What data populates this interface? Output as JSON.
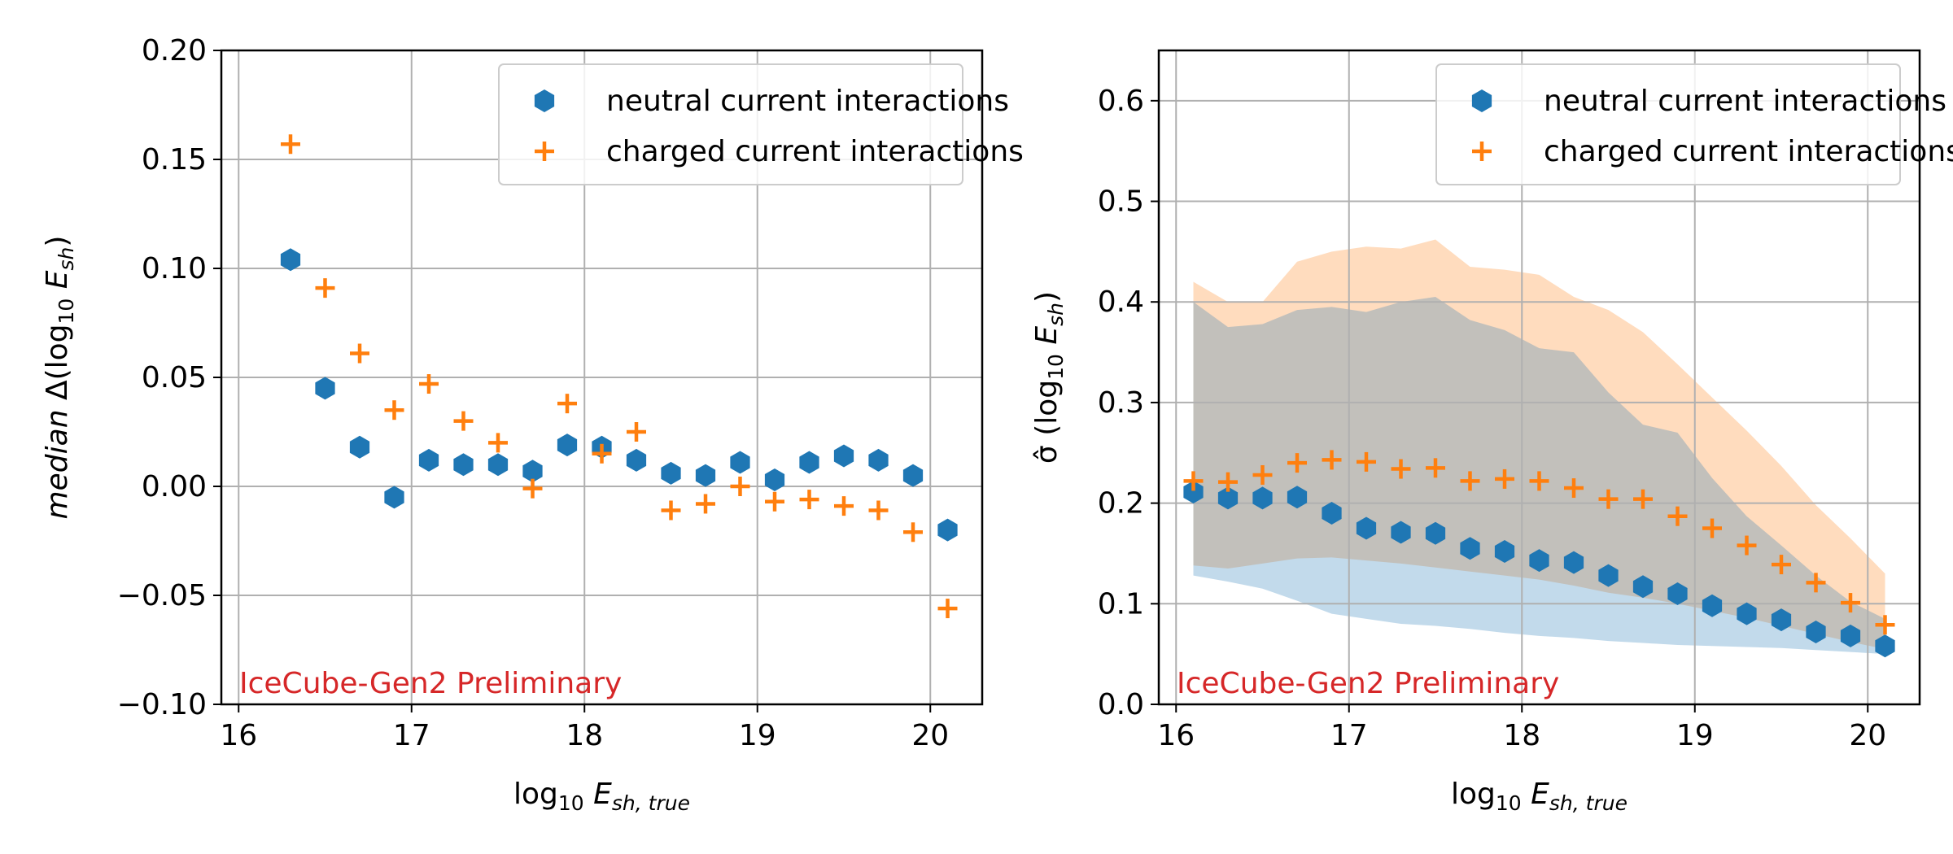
{
  "chart_data": [
    {
      "type": "scatter",
      "title": "",
      "xlabel": {
        "base": "log",
        "sub": "10",
        "var": "E",
        "varsub": "sh, true"
      },
      "ylabel": {
        "prefix": "median Δ(log",
        "sub": "10",
        "var": "E",
        "varsub": "sh",
        "suffix": ")"
      },
      "xlim": [
        15.9,
        20.3
      ],
      "ylim": [
        -0.1,
        0.2
      ],
      "xticks": [
        16,
        17,
        18,
        19,
        20
      ],
      "xtick_labels": [
        "16",
        "17",
        "18",
        "19",
        "20"
      ],
      "yticks": [
        -0.1,
        -0.05,
        0.0,
        0.05,
        0.1,
        0.15,
        0.2
      ],
      "ytick_labels": [
        "−0.10",
        "−0.05",
        "0.00",
        "0.05",
        "0.10",
        "0.15",
        "0.20"
      ],
      "grid": true,
      "legend_position": "top-right",
      "annotation": "IceCube-Gen2 Preliminary",
      "series": [
        {
          "name": "neutral current interactions",
          "marker": "hexagon",
          "color": "#1f77b4",
          "x": [
            16.3,
            16.5,
            16.7,
            16.9,
            17.1,
            17.3,
            17.5,
            17.7,
            17.9,
            18.1,
            18.3,
            18.5,
            18.7,
            18.9,
            19.1,
            19.3,
            19.5,
            19.7,
            19.9,
            20.1
          ],
          "y": [
            0.104,
            0.045,
            0.018,
            -0.005,
            0.012,
            0.01,
            0.01,
            0.007,
            0.019,
            0.018,
            0.012,
            0.006,
            0.005,
            0.011,
            0.003,
            0.011,
            0.014,
            0.012,
            0.005,
            -0.02
          ]
        },
        {
          "name": "charged current interactions",
          "marker": "plus",
          "color": "#ff7f0e",
          "x": [
            16.3,
            16.5,
            16.7,
            16.9,
            17.1,
            17.3,
            17.5,
            17.7,
            17.9,
            18.1,
            18.3,
            18.5,
            18.7,
            18.9,
            19.1,
            19.3,
            19.5,
            19.7,
            19.9,
            20.1
          ],
          "y": [
            0.157,
            0.091,
            0.061,
            0.035,
            0.047,
            0.03,
            0.02,
            -0.001,
            0.038,
            0.015,
            0.025,
            -0.011,
            -0.008,
            0.0,
            -0.007,
            -0.006,
            -0.009,
            -0.011,
            -0.021,
            -0.056
          ]
        }
      ]
    },
    {
      "type": "scatter",
      "title": "",
      "xlabel": {
        "base": "log",
        "sub": "10",
        "var": "E",
        "varsub": "sh, true"
      },
      "ylabel": {
        "prefix": "σ̂ (log",
        "sub": "10",
        "var": "E",
        "varsub": "sh",
        "suffix": ")"
      },
      "xlim": [
        15.9,
        20.3
      ],
      "ylim": [
        0.0,
        0.65
      ],
      "xticks": [
        16,
        17,
        18,
        19,
        20
      ],
      "xtick_labels": [
        "16",
        "17",
        "18",
        "19",
        "20"
      ],
      "yticks": [
        0.0,
        0.1,
        0.2,
        0.3,
        0.4,
        0.5,
        0.6
      ],
      "ytick_labels": [
        "0.0",
        "0.1",
        "0.2",
        "0.3",
        "0.4",
        "0.5",
        "0.6"
      ],
      "grid": true,
      "legend_position": "top-right",
      "annotation": "IceCube-Gen2 Preliminary",
      "bands": [
        {
          "series": "charged current interactions",
          "color": "#ff7f0e",
          "x": [
            16.1,
            16.3,
            16.5,
            16.7,
            16.9,
            17.1,
            17.3,
            17.5,
            17.7,
            17.9,
            18.1,
            18.3,
            18.5,
            18.7,
            18.9,
            19.1,
            19.3,
            19.5,
            19.7,
            19.9,
            20.1
          ],
          "upper": [
            0.42,
            0.4,
            0.4,
            0.44,
            0.45,
            0.455,
            0.453,
            0.462,
            0.435,
            0.432,
            0.427,
            0.405,
            0.392,
            0.37,
            0.338,
            0.305,
            0.272,
            0.237,
            0.198,
            0.165,
            0.13
          ],
          "lower": [
            0.138,
            0.135,
            0.14,
            0.145,
            0.146,
            0.143,
            0.14,
            0.136,
            0.132,
            0.128,
            0.124,
            0.118,
            0.111,
            0.106,
            0.1,
            0.093,
            0.086,
            0.078,
            0.07,
            0.062,
            0.055
          ]
        },
        {
          "series": "neutral current interactions",
          "color": "#1f77b4",
          "x": [
            16.1,
            16.3,
            16.5,
            16.7,
            16.9,
            17.1,
            17.3,
            17.5,
            17.7,
            17.9,
            18.1,
            18.3,
            18.5,
            18.7,
            18.9,
            19.1,
            19.3,
            19.5,
            19.7,
            19.9,
            20.1
          ],
          "upper": [
            0.4,
            0.375,
            0.378,
            0.392,
            0.395,
            0.39,
            0.4,
            0.405,
            0.382,
            0.372,
            0.354,
            0.35,
            0.31,
            0.278,
            0.27,
            0.225,
            0.187,
            0.158,
            0.128,
            0.102,
            0.085
          ],
          "lower": [
            0.128,
            0.122,
            0.115,
            0.103,
            0.09,
            0.085,
            0.08,
            0.078,
            0.075,
            0.071,
            0.068,
            0.066,
            0.063,
            0.061,
            0.059,
            0.058,
            0.057,
            0.056,
            0.054,
            0.052,
            0.05
          ]
        }
      ],
      "series": [
        {
          "name": "neutral current interactions",
          "marker": "hexagon",
          "color": "#1f77b4",
          "x": [
            16.1,
            16.3,
            16.5,
            16.7,
            16.9,
            17.1,
            17.3,
            17.5,
            17.7,
            17.9,
            18.1,
            18.3,
            18.5,
            18.7,
            18.9,
            19.1,
            19.3,
            19.5,
            19.7,
            19.9,
            20.1
          ],
          "y": [
            0.211,
            0.205,
            0.205,
            0.206,
            0.19,
            0.175,
            0.171,
            0.17,
            0.155,
            0.152,
            0.143,
            0.141,
            0.128,
            0.117,
            0.11,
            0.098,
            0.09,
            0.084,
            0.072,
            0.068,
            0.058
          ]
        },
        {
          "name": "charged current interactions",
          "marker": "plus",
          "color": "#ff7f0e",
          "x": [
            16.1,
            16.3,
            16.5,
            16.7,
            16.9,
            17.1,
            17.3,
            17.5,
            17.7,
            17.9,
            18.1,
            18.3,
            18.5,
            18.7,
            18.9,
            19.1,
            19.3,
            19.5,
            19.7,
            19.9,
            20.1
          ],
          "y": [
            0.222,
            0.221,
            0.228,
            0.24,
            0.243,
            0.241,
            0.234,
            0.235,
            0.222,
            0.224,
            0.222,
            0.215,
            0.204,
            0.204,
            0.187,
            0.175,
            0.158,
            0.139,
            0.121,
            0.101,
            0.079
          ]
        }
      ]
    }
  ]
}
